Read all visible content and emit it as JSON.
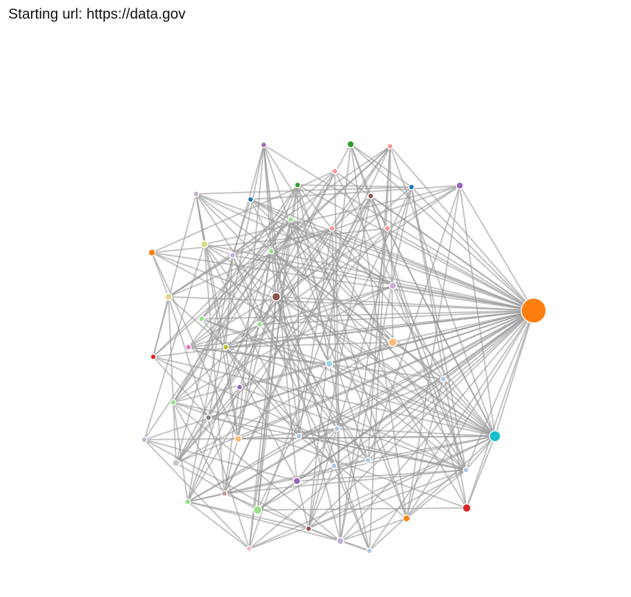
{
  "header": {
    "starting_url_label": "Starting url: https://data.gov"
  },
  "graph": {
    "type": "force-directed network",
    "node_count": 51,
    "link_count": 276,
    "link_color": "#999999",
    "node_stroke_color": "#ffffff",
    "palette": {
      "orange": "#ff7f0e",
      "cyan": "#17becf",
      "red": "#d62728",
      "purple": "#9467bd",
      "green": "#2ca02c",
      "light_green": "#98df8a",
      "pink": "#ff9896",
      "blue": "#1f77b4",
      "light_blue": "#aec7e8",
      "light_purple": "#c5b0d5",
      "brown": "#8c564b",
      "olive": "#dbdb8d",
      "yellow_green": "#bcbd22",
      "magenta": "#e377c2",
      "gray": "#7f7f7f",
      "light_gray": "#c7c7c7",
      "light_orange": "#ffbb78",
      "light_pink": "#f7b6d2",
      "rose": "#c49c94",
      "pale_cyan": "#9edae5"
    }
  }
}
